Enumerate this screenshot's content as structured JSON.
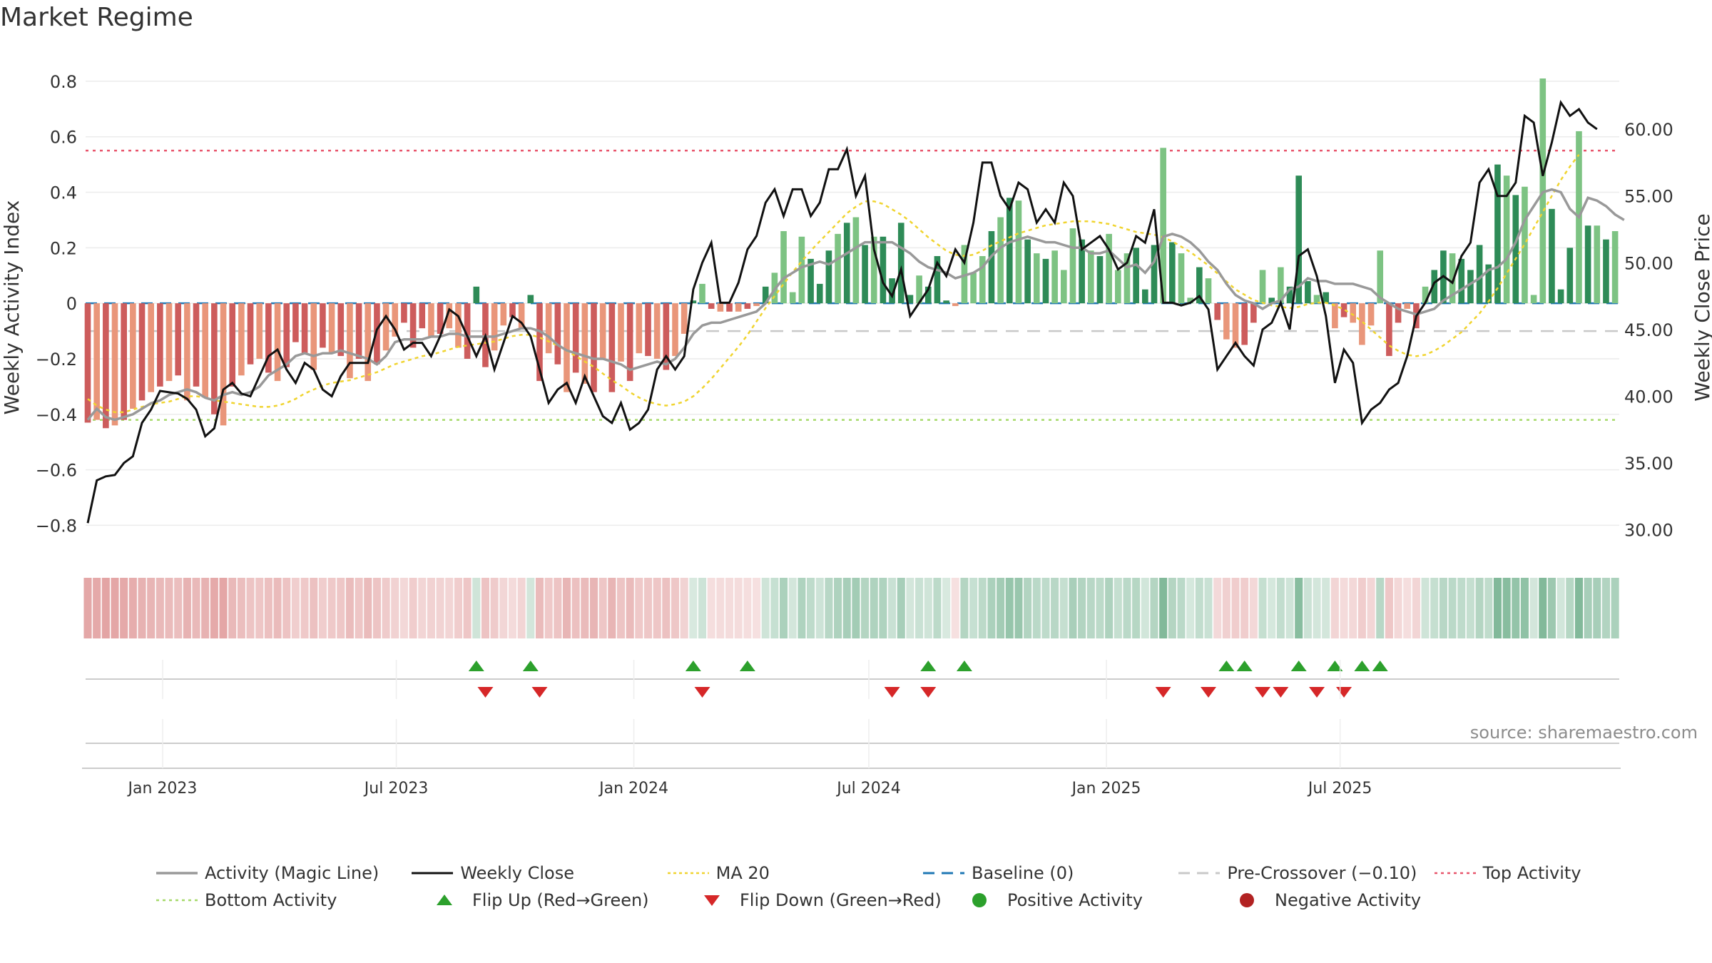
{
  "title": "Market Regime",
  "source": "source: sharemaestro.com",
  "colors": {
    "pos_dark": "#2e8b57",
    "pos_light": "#7dc383",
    "neg_dark": "#cd5c5c",
    "neg_light": "#e9967a",
    "activity_line": "#999999",
    "close_line": "#111111",
    "ma20": "#f0d430",
    "baseline": "#1f77b4",
    "precross": "#c8c8c8",
    "top": "#e8546b",
    "bottom": "#a6d96a",
    "flip_up": "#2ca02c",
    "flip_down": "#d62728"
  },
  "chart_data": {
    "type": "bar",
    "title": "Market Regime",
    "ylabel": "Weekly Activity Index",
    "y2label": "Weekly Close Price",
    "ylim": [
      -0.84,
      0.81
    ],
    "y2lim": [
      29.5,
      63.8
    ],
    "yticks": [
      "−0.8",
      "−0.6",
      "−0.4",
      "−0.2",
      "0",
      "0.2",
      "0.4",
      "0.6",
      "0.8"
    ],
    "y2ticks": [
      "30.00",
      "35.00",
      "40.00",
      "45.00",
      "50.00",
      "55.00",
      "60.00"
    ],
    "xticks": [
      "Jan 2023",
      "Jul 2023",
      "Jan 2024",
      "Jul 2024",
      "Jan 2025",
      "Jul 2025"
    ],
    "xtick_dates": [
      "2023-01-01",
      "2023-07-01",
      "2024-01-01",
      "2024-07-01",
      "2025-01-01",
      "2025-07-01"
    ],
    "x_start": "2022-11-04",
    "x_step_days": 7,
    "activity": [
      -0.43,
      -0.42,
      -0.45,
      -0.44,
      -0.42,
      -0.38,
      -0.35,
      -0.32,
      -0.3,
      -0.28,
      -0.26,
      -0.35,
      -0.3,
      -0.34,
      -0.4,
      -0.44,
      -0.3,
      -0.26,
      -0.22,
      -0.2,
      -0.25,
      -0.28,
      -0.23,
      -0.14,
      -0.18,
      -0.24,
      -0.16,
      -0.18,
      -0.19,
      -0.27,
      -0.2,
      -0.28,
      -0.22,
      -0.17,
      -0.12,
      -0.07,
      -0.16,
      -0.09,
      -0.12,
      -0.11,
      -0.09,
      -0.16,
      -0.2,
      0.06,
      -0.23,
      -0.17,
      -0.08,
      -0.05,
      -0.09,
      0.03,
      -0.28,
      -0.18,
      -0.22,
      -0.32,
      -0.25,
      -0.29,
      -0.32,
      -0.2,
      -0.32,
      -0.21,
      -0.28,
      -0.18,
      -0.19,
      -0.2,
      -0.24,
      -0.19,
      -0.11,
      0.01,
      0.07,
      -0.02,
      -0.03,
      -0.03,
      -0.03,
      -0.02,
      -0.01,
      0.06,
      0.11,
      0.26,
      0.04,
      0.24,
      0.16,
      0.07,
      0.19,
      0.25,
      0.29,
      0.31,
      0.21,
      0.24,
      0.24,
      0.09,
      0.29,
      0.03,
      0.1,
      0.06,
      0.17,
      0.01,
      -0.01,
      0.21,
      0.11,
      0.17,
      0.26,
      0.31,
      0.38,
      0.37,
      0.23,
      0.18,
      0.16,
      0.19,
      0.12,
      0.27,
      0.23,
      0.19,
      0.17,
      0.25,
      0.12,
      0.18,
      0.2,
      0.05,
      0.21,
      0.56,
      0.22,
      0.18,
      0.02,
      0.13,
      0.09,
      -0.06,
      -0.13,
      -0.16,
      -0.15,
      -0.07,
      0.12,
      0.02,
      0.13,
      0.06,
      0.46,
      0.08,
      0.03,
      0.04,
      -0.09,
      -0.05,
      -0.07,
      -0.15,
      -0.08,
      0.19,
      -0.19,
      -0.07,
      -0.02,
      -0.09,
      0.06,
      0.12,
      0.19,
      0.18,
      0.16,
      0.12,
      0.21,
      0.14,
      0.5,
      0.46,
      0.39,
      0.42,
      0.03,
      0.81,
      0.34,
      0.05,
      0.2,
      0.62,
      0.28,
      0.28,
      0.23,
      0.26
    ],
    "magic_line": [
      -0.42,
      -0.38,
      -0.41,
      -0.42,
      -0.41,
      -0.4,
      -0.38,
      -0.36,
      -0.35,
      -0.33,
      -0.32,
      -0.31,
      -0.32,
      -0.34,
      -0.35,
      -0.33,
      -0.32,
      -0.33,
      -0.32,
      -0.3,
      -0.26,
      -0.24,
      -0.22,
      -0.19,
      -0.18,
      -0.19,
      -0.18,
      -0.18,
      -0.17,
      -0.18,
      -0.19,
      -0.2,
      -0.22,
      -0.19,
      -0.14,
      -0.13,
      -0.13,
      -0.13,
      -0.12,
      -0.12,
      -0.11,
      -0.11,
      -0.12,
      -0.12,
      -0.12,
      -0.12,
      -0.11,
      -0.1,
      -0.09,
      -0.09,
      -0.1,
      -0.12,
      -0.15,
      -0.17,
      -0.18,
      -0.19,
      -0.2,
      -0.2,
      -0.21,
      -0.22,
      -0.24,
      -0.23,
      -0.22,
      -0.21,
      -0.22,
      -0.2,
      -0.16,
      -0.11,
      -0.08,
      -0.07,
      -0.07,
      -0.06,
      -0.05,
      -0.04,
      -0.03,
      0.0,
      0.05,
      0.09,
      0.11,
      0.13,
      0.14,
      0.15,
      0.14,
      0.16,
      0.18,
      0.2,
      0.22,
      0.22,
      0.22,
      0.22,
      0.2,
      0.18,
      0.15,
      0.13,
      0.12,
      0.11,
      0.09,
      0.1,
      0.11,
      0.13,
      0.17,
      0.2,
      0.22,
      0.23,
      0.24,
      0.23,
      0.22,
      0.22,
      0.21,
      0.2,
      0.2,
      0.18,
      0.18,
      0.19,
      0.16,
      0.13,
      0.14,
      0.11,
      0.15,
      0.24,
      0.25,
      0.24,
      0.22,
      0.19,
      0.15,
      0.12,
      0.07,
      0.03,
      0.01,
      0.0,
      -0.02,
      0.0,
      0.01,
      0.05,
      0.06,
      0.09,
      0.08,
      0.08,
      0.07,
      0.07,
      0.07,
      0.06,
      0.05,
      0.02,
      0.0,
      -0.02,
      -0.03,
      -0.04,
      -0.03,
      -0.02,
      0.01,
      0.03,
      0.05,
      0.07,
      0.09,
      0.12,
      0.13,
      0.16,
      0.22,
      0.3,
      0.35,
      0.4,
      0.41,
      0.4,
      0.34,
      0.31,
      0.38,
      0.37,
      0.35,
      0.32,
      0.3
    ],
    "close": [
      30.5,
      33.7,
      34.0,
      34.1,
      35.0,
      35.5,
      38.0,
      39.0,
      40.4,
      40.3,
      40.2,
      39.8,
      39.0,
      37.0,
      37.6,
      40.5,
      41.0,
      40.2,
      40.0,
      41.5,
      43.0,
      43.5,
      42.0,
      41.0,
      42.5,
      42.0,
      40.5,
      40.0,
      41.5,
      42.5,
      42.5,
      42.5,
      45.0,
      46.0,
      45.0,
      43.5,
      44.0,
      44.0,
      43.0,
      44.5,
      46.5,
      46.0,
      44.5,
      43.0,
      44.5,
      42.0,
      44.0,
      46.0,
      45.5,
      44.5,
      42.0,
      39.5,
      40.5,
      41.0,
      39.5,
      41.5,
      40.0,
      38.5,
      38.0,
      39.5,
      37.5,
      38.0,
      39.0,
      42.0,
      43.0,
      42.0,
      43.0,
      48.0,
      50.0,
      51.5,
      47.0,
      47.0,
      48.5,
      51.0,
      52.0,
      54.5,
      55.5,
      53.5,
      55.5,
      55.5,
      53.5,
      54.5,
      57.0,
      57.0,
      58.5,
      55.0,
      56.5,
      51.0,
      48.5,
      47.5,
      49.5,
      46.0,
      47.0,
      48.0,
      50.0,
      49.0,
      51.0,
      50.0,
      53.0,
      57.5,
      57.5,
      55.0,
      54.0,
      56.0,
      55.5,
      53.0,
      54.0,
      53.0,
      56.0,
      55.0,
      51.0,
      51.5,
      52.0,
      51.0,
      49.5,
      50.0,
      52.0,
      51.5,
      54.0,
      47.0,
      47.0,
      46.8,
      47.0,
      47.5,
      46.5,
      42.0,
      43.0,
      44.0,
      43.0,
      42.3,
      45.0,
      45.5,
      47.0,
      45.0,
      50.5,
      51.0,
      49.0,
      46.0,
      41.0,
      43.5,
      42.5,
      38.0,
      39.0,
      39.5,
      40.5,
      41.0,
      43.0,
      46.0,
      47.0,
      48.5,
      49.0,
      48.5,
      50.5,
      51.5,
      56.0,
      57.0,
      55.0,
      55.0,
      56.0,
      61.0,
      60.5,
      56.5,
      59.0,
      62.0,
      61.0,
      61.5,
      60.5,
      60.0
    ],
    "ma20": [
      39.8,
      39.3,
      39.0,
      38.8,
      38.8,
      39.0,
      39.2,
      39.4,
      39.5,
      39.6,
      39.8,
      40.0,
      40.0,
      39.9,
      39.7,
      39.6,
      39.5,
      39.4,
      39.3,
      39.2,
      39.2,
      39.3,
      39.5,
      39.8,
      40.2,
      40.5,
      40.8,
      41.0,
      41.1,
      41.2,
      41.4,
      41.6,
      41.8,
      42.1,
      42.4,
      42.6,
      42.8,
      43.0,
      43.1,
      43.3,
      43.5,
      43.7,
      43.8,
      43.9,
      44.0,
      44.1,
      44.3,
      44.5,
      44.6,
      44.6,
      44.4,
      44.1,
      43.8,
      43.4,
      43.0,
      42.6,
      42.2,
      41.7,
      41.2,
      40.8,
      40.3,
      39.9,
      39.6,
      39.4,
      39.3,
      39.4,
      39.6,
      40.0,
      40.6,
      41.3,
      42.1,
      42.9,
      43.7,
      44.6,
      45.6,
      46.6,
      47.5,
      48.4,
      49.3,
      50.1,
      50.9,
      51.6,
      52.3,
      53.0,
      53.7,
      54.2,
      54.6,
      54.6,
      54.4,
      54.0,
      53.6,
      53.1,
      52.5,
      51.9,
      51.4,
      50.9,
      50.6,
      50.5,
      50.6,
      50.9,
      51.3,
      51.6,
      51.9,
      52.2,
      52.4,
      52.6,
      52.8,
      52.9,
      53.0,
      53.1,
      53.1,
      53.1,
      53.0,
      52.9,
      52.7,
      52.5,
      52.3,
      52.2,
      52.1,
      51.9,
      51.6,
      51.2,
      50.8,
      50.3,
      49.8,
      49.2,
      48.6,
      48.0,
      47.6,
      47.2,
      47.0,
      46.8,
      46.7,
      46.6,
      46.7,
      46.9,
      47.0,
      47.0,
      46.8,
      46.5,
      46.1,
      45.6,
      45.0,
      44.4,
      43.8,
      43.4,
      43.1,
      43.0,
      43.1,
      43.4,
      43.8,
      44.3,
      44.8,
      45.5,
      46.2,
      47.1,
      48.1,
      49.2,
      50.3,
      51.4,
      52.6,
      53.8,
      55.0,
      56.2,
      57.2,
      58.1
    ],
    "top_activity": 0.55,
    "bottom_activity": -0.42,
    "pre_crossover": -0.1,
    "baseline": 0,
    "flip_up_idx": [
      43,
      49,
      67,
      73,
      93,
      97,
      126,
      128,
      134,
      138,
      141,
      143
    ],
    "flip_down_idx": [
      44,
      50,
      68,
      89,
      93,
      119,
      124,
      130,
      132,
      136,
      139
    ],
    "legend": [
      {
        "label": "Activity (Magic Line)",
        "sym": "line-gray"
      },
      {
        "label": "Weekly Close",
        "sym": "line-black"
      },
      {
        "label": "MA 20",
        "sym": "dot-yellow"
      },
      {
        "label": "Baseline (0)",
        "sym": "dash-blue"
      },
      {
        "label": "Pre-Crossover (−0.10)",
        "sym": "dash-gray"
      },
      {
        "label": "Top Activity",
        "sym": "dot-red"
      },
      {
        "label": "Bottom Activity",
        "sym": "dot-green"
      },
      {
        "label": "Flip Up (Red→Green)",
        "sym": "tri-up"
      },
      {
        "label": "Flip Down (Green→Red)",
        "sym": "tri-down"
      },
      {
        "label": "Positive Activity",
        "sym": "circle-green"
      },
      {
        "label": "Negative Activity",
        "sym": "circle-red"
      }
    ]
  }
}
